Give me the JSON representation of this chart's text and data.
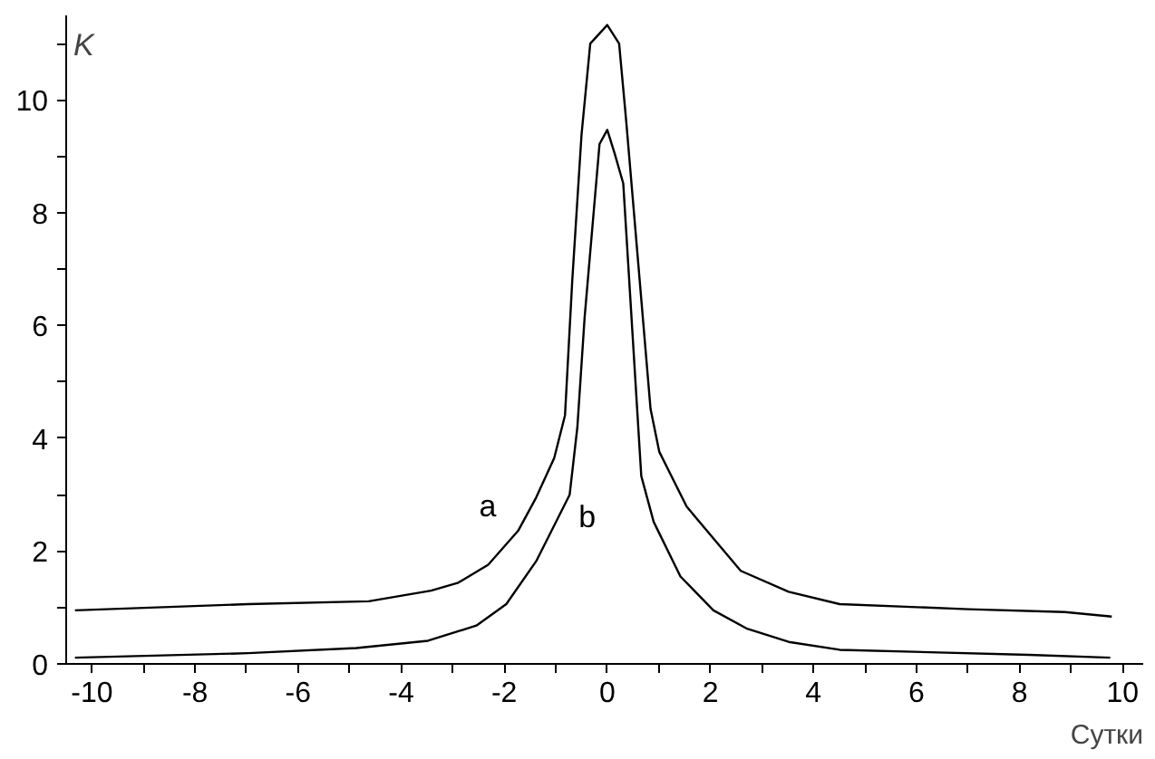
{
  "chart_data": {
    "type": "line",
    "xlabel": "Сутки",
    "ylabel": "K",
    "xlim": [
      -10.5,
      10.4
    ],
    "ylim": [
      0,
      11.5
    ],
    "xticks": [
      {
        "value": -10,
        "label": "-10"
      },
      {
        "value": -9,
        "label": null
      },
      {
        "value": -8,
        "label": "-8"
      },
      {
        "value": -7,
        "label": null
      },
      {
        "value": -6,
        "label": "-6"
      },
      {
        "value": -5,
        "label": null
      },
      {
        "value": -4,
        "label": "-4"
      },
      {
        "value": -3,
        "label": null
      },
      {
        "value": -2,
        "label": "-2"
      },
      {
        "value": -1,
        "label": null
      },
      0,
      {
        "value": 1,
        "label": null
      },
      2,
      {
        "value": 3,
        "label": null
      },
      4,
      {
        "value": 5,
        "label": null
      },
      6,
      {
        "value": 7,
        "label": null
      },
      8,
      {
        "value": 9,
        "label": null
      },
      10
    ],
    "yticks": [
      0,
      {
        "value": 1,
        "label": null
      },
      2,
      {
        "value": 3,
        "label": null
      },
      4,
      {
        "value": 5,
        "label": null
      },
      6,
      {
        "value": 7,
        "label": null
      },
      8,
      {
        "value": 9,
        "label": null
      },
      10,
      {
        "value": 11,
        "label": null
      }
    ],
    "grid": false,
    "legend": false,
    "marker": "none",
    "line_style": "solid",
    "series": [
      {
        "name": "a",
        "color": "#000000",
        "x": [
          -10.33,
          -6.97,
          -4.63,
          -3.42,
          -2.89,
          -2.31,
          -1.73,
          -1.38,
          -1.03,
          -0.82,
          -0.68,
          -0.5,
          -0.33,
          0,
          0.23,
          0.37,
          0.84,
          1.01,
          1.54,
          2.59,
          3.52,
          4.51,
          7.01,
          8.88,
          9.79
        ],
        "values": [
          0.95,
          1.06,
          1.11,
          1.3,
          1.44,
          1.76,
          2.36,
          2.95,
          3.65,
          4.41,
          6.79,
          9.38,
          11.0,
          11.33,
          11.0,
          9.6,
          4.52,
          3.76,
          2.79,
          1.65,
          1.28,
          1.06,
          0.97,
          0.92,
          0.84
        ]
      },
      {
        "name": "b",
        "color": "#000000",
        "x": [
          -10.33,
          -6.97,
          -4.87,
          -3.48,
          -2.54,
          -1.96,
          -1.38,
          -0.73,
          -0.58,
          -0.44,
          -0.15,
          0,
          0.14,
          0.31,
          0.66,
          0.9,
          1.42,
          2.06,
          2.7,
          3.52,
          4.51,
          8.18,
          9.76
        ],
        "values": [
          0.11,
          0.19,
          0.28,
          0.41,
          0.68,
          1.06,
          1.82,
          3.0,
          4.2,
          6.14,
          9.22,
          9.47,
          9.06,
          8.52,
          3.33,
          2.52,
          1.55,
          0.95,
          0.63,
          0.39,
          0.25,
          0.16,
          0.11
        ]
      }
    ]
  }
}
